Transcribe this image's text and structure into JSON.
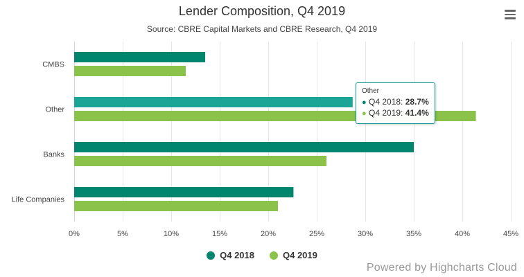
{
  "chart_data": {
    "type": "bar",
    "orientation": "horizontal",
    "title": "Lender Composition, Q4 2019",
    "subtitle": "Source: CBRE Capital Markets and CBRE Research, Q4 2019",
    "categories": [
      "CMBS",
      "Other",
      "Banks",
      "Life Companies"
    ],
    "series": [
      {
        "name": "Q4 2018",
        "color": "#00856f",
        "values": [
          13.5,
          28.7,
          35.0,
          22.6
        ]
      },
      {
        "name": "Q4 2019",
        "color": "#8bc34a",
        "values": [
          11.5,
          41.4,
          26.0,
          21.0
        ]
      }
    ],
    "xlim": [
      0,
      45
    ],
    "xticks": [
      "0%",
      "5%",
      "10%",
      "15%",
      "20%",
      "25%",
      "30%",
      "35%",
      "40%",
      "45%"
    ],
    "xtick_values": [
      0,
      5,
      10,
      15,
      20,
      25,
      30,
      35,
      40,
      45
    ],
    "grid": true,
    "legend_position": "bottom-center",
    "highlight_category_index": 1,
    "highlight_color": "#1aa596"
  },
  "tooltip": {
    "header": "Other",
    "rows": [
      {
        "label": "Q4 2018: ",
        "value": "28.7%",
        "color": "#00856f"
      },
      {
        "label": "Q4 2019: ",
        "value": "41.4%",
        "color": "#8bc34a"
      }
    ]
  },
  "credits": "Powered by Highcharts Cloud",
  "menu_icon": "hamburger-menu-icon"
}
